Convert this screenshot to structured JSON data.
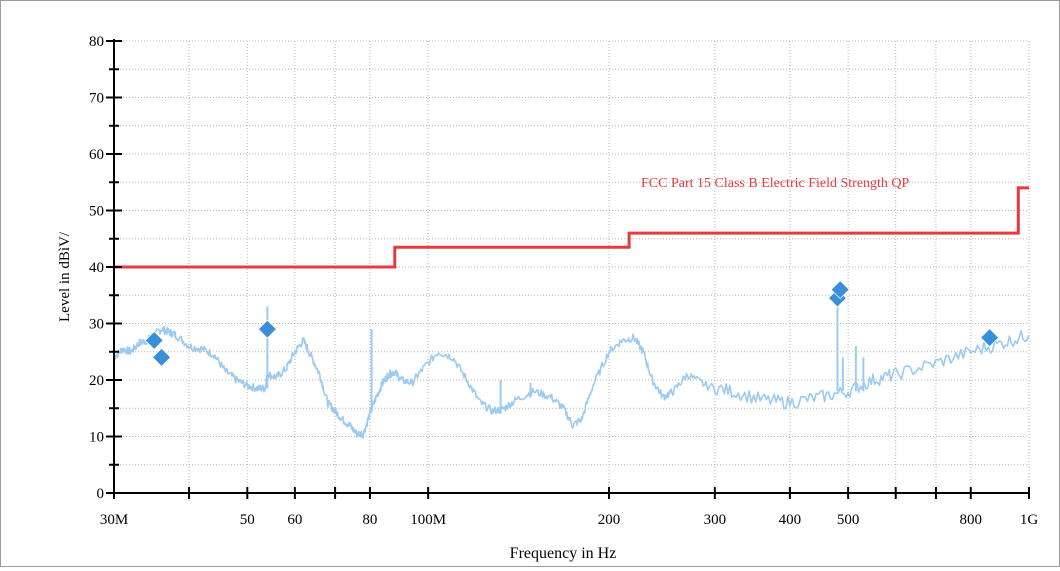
{
  "chart_data": {
    "type": "line",
    "xlabel": "Frequency in Hz",
    "ylabel": "Level in dBìV/",
    "xscale": "log",
    "xlim": [
      30000000,
      1000000000
    ],
    "ylim": [
      0,
      80
    ],
    "grid": true,
    "y_ticks": [
      0,
      10,
      20,
      30,
      40,
      50,
      60,
      70,
      80
    ],
    "x_ticks": [
      {
        "value": 30000000,
        "label": "30M"
      },
      {
        "value": 40000000,
        "label": ""
      },
      {
        "value": 50000000,
        "label": "50"
      },
      {
        "value": 60000000,
        "label": "60"
      },
      {
        "value": 70000000,
        "label": ""
      },
      {
        "value": 80000000,
        "label": "80"
      },
      {
        "value": 100000000,
        "label": "100M"
      },
      {
        "value": 200000000,
        "label": "200"
      },
      {
        "value": 300000000,
        "label": "300"
      },
      {
        "value": 400000000,
        "label": "400"
      },
      {
        "value": 500000000,
        "label": "500"
      },
      {
        "value": 600000000,
        "label": ""
      },
      {
        "value": 700000000,
        "label": ""
      },
      {
        "value": 800000000,
        "label": "800"
      },
      {
        "value": 1000000000,
        "label": "1G"
      }
    ],
    "colors": {
      "limit": "#e8393f",
      "spectrum": "#9ccaf0",
      "markers": "#3b8fd9",
      "grid": "#b5b5b5",
      "axis": "#000000"
    },
    "limit_line": {
      "label": "FCC Part 15 Class B Electric Field Strength QP",
      "points": [
        [
          30000000,
          40
        ],
        [
          88000000,
          40
        ],
        [
          88000000,
          43.5
        ],
        [
          216000000,
          43.5
        ],
        [
          216000000,
          46
        ],
        [
          960000000,
          46
        ],
        [
          960000000,
          54
        ],
        [
          1000000000,
          54
        ]
      ]
    },
    "spectrum": [
      [
        30000000,
        24
      ],
      [
        31000000,
        25.5
      ],
      [
        32000000,
        25
      ],
      [
        33000000,
        26.5
      ],
      [
        34000000,
        27
      ],
      [
        35000000,
        28
      ],
      [
        36000000,
        29
      ],
      [
        37000000,
        28.5
      ],
      [
        38000000,
        28
      ],
      [
        40000000,
        26
      ],
      [
        42000000,
        25.5
      ],
      [
        44000000,
        24.5
      ],
      [
        46000000,
        21.5
      ],
      [
        48000000,
        20
      ],
      [
        50000000,
        19
      ],
      [
        52000000,
        18.5
      ],
      [
        53500000,
        18.5
      ],
      [
        54000000,
        21
      ],
      [
        56000000,
        20.5
      ],
      [
        58000000,
        22
      ],
      [
        60000000,
        25
      ],
      [
        62000000,
        27
      ],
      [
        64000000,
        24
      ],
      [
        66000000,
        21
      ],
      [
        68000000,
        16
      ],
      [
        70000000,
        14.5
      ],
      [
        72000000,
        13
      ],
      [
        74000000,
        12
      ],
      [
        76000000,
        10.5
      ],
      [
        78000000,
        10.5
      ],
      [
        80000000,
        14
      ],
      [
        82000000,
        17
      ],
      [
        84000000,
        19.5
      ],
      [
        86000000,
        21
      ],
      [
        88000000,
        21.5
      ],
      [
        90000000,
        20
      ],
      [
        94000000,
        19.5
      ],
      [
        98000000,
        22
      ],
      [
        104000000,
        25
      ],
      [
        110000000,
        24
      ],
      [
        116000000,
        20
      ],
      [
        122000000,
        16
      ],
      [
        128000000,
        14.5
      ],
      [
        134000000,
        15
      ],
      [
        140000000,
        16.5
      ],
      [
        150000000,
        18
      ],
      [
        160000000,
        17
      ],
      [
        168000000,
        15
      ],
      [
        174000000,
        12
      ],
      [
        180000000,
        13
      ],
      [
        188000000,
        19
      ],
      [
        200000000,
        25
      ],
      [
        210000000,
        27
      ],
      [
        220000000,
        27.5
      ],
      [
        228000000,
        25
      ],
      [
        236000000,
        20
      ],
      [
        246000000,
        17
      ],
      [
        256000000,
        18
      ],
      [
        270000000,
        21
      ],
      [
        290000000,
        19
      ],
      [
        320000000,
        18
      ],
      [
        360000000,
        16.5
      ],
      [
        400000000,
        16
      ],
      [
        450000000,
        17
      ],
      [
        500000000,
        18
      ],
      [
        550000000,
        20
      ],
      [
        600000000,
        21
      ],
      [
        700000000,
        23
      ],
      [
        800000000,
        25
      ],
      [
        900000000,
        26.5
      ],
      [
        1000000000,
        28
      ]
    ],
    "spikes": [
      [
        54000000,
        18.5,
        33
      ],
      [
        80500000,
        15,
        29
      ],
      [
        132000000,
        14,
        20
      ],
      [
        148000000,
        17,
        19.5
      ],
      [
        480000000,
        18,
        36
      ],
      [
        490000000,
        18,
        24
      ],
      [
        515000000,
        18,
        26
      ],
      [
        530000000,
        18,
        24
      ]
    ],
    "markers": [
      [
        35000000,
        27
      ],
      [
        36000000,
        24
      ],
      [
        54000000,
        29
      ],
      [
        480000000,
        34.5
      ],
      [
        485000000,
        36
      ],
      [
        860000000,
        27.5
      ]
    ]
  }
}
